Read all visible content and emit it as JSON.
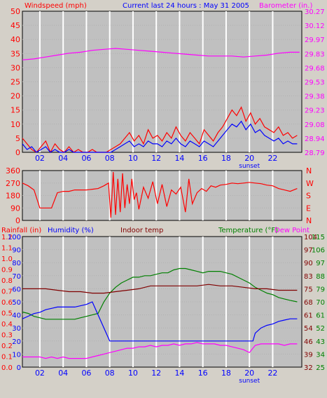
{
  "header": {
    "windspeed_label": "Windspeed (mph)",
    "title": "Current last 24 hours : May 31 2005",
    "barometer_label": "Barometer (in.)"
  },
  "colors": {
    "background": "#d4d0c8",
    "plot_bg": "#c0c0c0",
    "grid": "#ffffff",
    "red": "#ff0000",
    "blue": "#0000ff",
    "magenta": "#ff00ff",
    "green": "#008000",
    "maroon": "#800000",
    "label_red": "#ff0000",
    "label_magenta": "#ff00ff",
    "label_blue": "#0000ff",
    "label_green": "#008000",
    "label_maroon": "#800000"
  },
  "chart_data": [
    {
      "id": "wind-barometer",
      "type": "line",
      "x_ticks": [
        "02",
        "04",
        "06",
        "08",
        "10",
        "12",
        "14",
        "16",
        "18",
        "20",
        "22"
      ],
      "x_hours": [
        1.5,
        3.5,
        5.5,
        7.5,
        9.5,
        11.5,
        13.5,
        15.5,
        17.5,
        19.5,
        21.5
      ],
      "x_range": [
        0,
        24
      ],
      "sunset_label": "sunset",
      "sunset_hour": 19.5,
      "ylim_left": [
        0,
        50
      ],
      "ylim_right": [
        28.79,
        30.27
      ],
      "left_ticks": [
        "0",
        "5",
        "10",
        "15",
        "20",
        "25",
        "30",
        "35",
        "40",
        "45",
        "50"
      ],
      "right_ticks": [
        "28.79",
        "28.94",
        "29.08",
        "29.23",
        "29.38",
        "29.53",
        "29.68",
        "29.83",
        "29.97",
        "30.12",
        "30.27"
      ],
      "series": [
        {
          "name": "gust",
          "color": "red",
          "axis": "left",
          "x": [
            0,
            0.4,
            0.8,
            1.2,
            1.6,
            2,
            2.4,
            2.8,
            3.2,
            3.6,
            4,
            4.4,
            4.8,
            5.2,
            5.6,
            6,
            6.4,
            6.8,
            7.2,
            7.6,
            8,
            8.4,
            8.8,
            9.2,
            9.6,
            10,
            10.4,
            10.8,
            11.2,
            11.6,
            12,
            12.4,
            12.8,
            13.2,
            13.6,
            14,
            14.4,
            14.8,
            15.2,
            15.6,
            16,
            16.4,
            16.8,
            17.2,
            17.6,
            18,
            18.4,
            18.8,
            19.2,
            19.6,
            20,
            20.4,
            20.8,
            21.2,
            21.6,
            22,
            22.4,
            22.8,
            23.2,
            23.6
          ],
          "y": [
            5,
            3,
            1,
            0,
            2,
            4,
            0,
            3,
            1,
            0,
            2,
            0,
            1,
            0,
            0,
            1,
            0,
            0,
            0,
            1,
            2,
            3,
            5,
            7,
            4,
            6,
            3,
            8,
            5,
            6,
            4,
            7,
            5,
            9,
            6,
            4,
            7,
            5,
            3,
            8,
            6,
            4,
            7,
            9,
            12,
            15,
            13,
            16,
            11,
            14,
            10,
            12,
            9,
            8,
            7,
            9,
            6,
            7,
            5,
            6
          ]
        },
        {
          "name": "speed",
          "color": "blue",
          "axis": "left",
          "x": [
            0,
            0.4,
            0.8,
            1.2,
            1.6,
            2,
            2.4,
            2.8,
            3.2,
            3.6,
            4,
            4.4,
            4.8,
            5.2,
            5.6,
            6,
            6.4,
            6.8,
            7.2,
            7.6,
            8,
            8.4,
            8.8,
            9.2,
            9.6,
            10,
            10.4,
            10.8,
            11.2,
            11.6,
            12,
            12.4,
            12.8,
            13.2,
            13.6,
            14,
            14.4,
            14.8,
            15.2,
            15.6,
            16,
            16.4,
            16.8,
            17.2,
            17.6,
            18,
            18.4,
            18.8,
            19.2,
            19.6,
            20,
            20.4,
            20.8,
            21.2,
            21.6,
            22,
            22.4,
            22.8,
            23.2,
            23.6
          ],
          "y": [
            3,
            1,
            2,
            0,
            1,
            2,
            0,
            1,
            0,
            0,
            1,
            0,
            0,
            0,
            0,
            0,
            0,
            0,
            0,
            0,
            1,
            2,
            3,
            4,
            2,
            3,
            2,
            4,
            3,
            3,
            2,
            4,
            3,
            5,
            3,
            2,
            4,
            3,
            2,
            4,
            3,
            2,
            4,
            6,
            8,
            10,
            9,
            11,
            8,
            10,
            7,
            8,
            6,
            5,
            4,
            5,
            3,
            4,
            3,
            3
          ]
        },
        {
          "name": "barometer",
          "color": "magenta",
          "axis": "right",
          "x": [
            0,
            1,
            2,
            3,
            4,
            5,
            6,
            7,
            8,
            9,
            10,
            11,
            12,
            13,
            14,
            15,
            16,
            17,
            18,
            19,
            20,
            21,
            22,
            23,
            23.8
          ],
          "y": [
            29.76,
            29.77,
            29.79,
            29.81,
            29.83,
            29.84,
            29.86,
            29.87,
            29.88,
            29.87,
            29.86,
            29.85,
            29.84,
            29.83,
            29.82,
            29.81,
            29.8,
            29.8,
            29.8,
            29.79,
            29.8,
            29.81,
            29.83,
            29.84,
            29.84
          ]
        }
      ]
    },
    {
      "id": "wind-direction",
      "type": "line",
      "x_range": [
        0,
        24
      ],
      "ylim": [
        0,
        360
      ],
      "left_ticks": [
        "0",
        "90",
        "180",
        "270",
        "360"
      ],
      "right_ticks": [
        "N",
        "E",
        "S",
        "W",
        "N"
      ],
      "series": [
        {
          "name": "direction",
          "color": "red",
          "x": [
            0,
            0.5,
            1,
            1.5,
            2,
            2.5,
            3,
            3.5,
            4,
            4.5,
            5,
            5.5,
            6,
            6.5,
            7,
            7.2,
            7.4,
            7.6,
            7.8,
            8,
            8.2,
            8.4,
            8.6,
            8.8,
            9,
            9.2,
            9.4,
            9.6,
            9.8,
            10,
            10.4,
            10.8,
            11.2,
            11.6,
            12,
            12.4,
            12.8,
            13.2,
            13.6,
            14,
            14.3,
            14.6,
            15,
            15.4,
            15.8,
            16.2,
            16.6,
            17,
            17.5,
            18,
            18.5,
            19,
            19.5,
            20,
            20.5,
            21,
            21.5,
            22,
            22.5,
            23,
            23.6
          ],
          "y": [
            270,
            250,
            220,
            90,
            90,
            90,
            200,
            210,
            210,
            220,
            220,
            220,
            225,
            230,
            250,
            260,
            270,
            20,
            350,
            40,
            300,
            60,
            340,
            90,
            260,
            120,
            300,
            150,
            200,
            80,
            240,
            160,
            280,
            120,
            260,
            100,
            220,
            190,
            240,
            60,
            300,
            120,
            200,
            230,
            210,
            250,
            240,
            255,
            260,
            270,
            265,
            270,
            275,
            270,
            265,
            255,
            250,
            230,
            220,
            210,
            230
          ]
        }
      ]
    },
    {
      "id": "temp-humidity-rain",
      "type": "line",
      "x_ticks": [
        "02",
        "04",
        "06",
        "08",
        "10",
        "12",
        "14",
        "16",
        "18",
        "20",
        "22"
      ],
      "x_hours": [
        1.5,
        3.5,
        5.5,
        7.5,
        9.5,
        11.5,
        13.5,
        15.5,
        17.5,
        19.5,
        21.5
      ],
      "x_range": [
        0,
        24
      ],
      "sunset_label": "sunset",
      "sunset_hour": 19.5,
      "labels": {
        "rainfall": "Rainfall (in)",
        "humidity": "Humidity (%)",
        "indoor": "Indoor temp",
        "temperature": "Temperature (°F)",
        "dewpoint": "Dew Point"
      },
      "rain_ticks": [
        "0.0",
        "0.1",
        "0.2",
        "0.3",
        "0.4",
        "0.5",
        "0.6",
        "0.7",
        "0.8",
        "0.9",
        "1.0",
        "1.1",
        "1.2"
      ],
      "humidity_ticks": [
        "0",
        "10",
        "20",
        "30",
        "40",
        "50",
        "60",
        "70",
        "80",
        "90",
        "100"
      ],
      "indoor_ticks": [
        "32",
        "39",
        "46",
        "54",
        "61",
        "68",
        "75",
        "83",
        "90",
        "97",
        "104"
      ],
      "temp_ticks": [
        "25",
        "34",
        "43",
        "52",
        "61",
        "70",
        "79",
        "88",
        "97",
        "106",
        "115"
      ],
      "temp_range": [
        25,
        115
      ],
      "humidity_range": [
        0,
        100
      ],
      "series": [
        {
          "name": "temperature",
          "color": "green",
          "x": [
            0,
            0.5,
            1,
            1.5,
            2,
            2.5,
            3,
            3.5,
            4,
            4.5,
            5,
            5.5,
            6,
            6.5,
            7,
            7.5,
            8,
            8.5,
            9,
            9.5,
            10,
            10.5,
            11,
            11.5,
            12,
            12.5,
            13,
            13.5,
            14,
            14.5,
            15,
            15.5,
            16,
            16.5,
            17,
            17.5,
            18,
            18.5,
            19,
            19.5,
            20,
            20.5,
            21,
            21.5,
            22,
            22.5,
            23,
            23.6
          ],
          "y": [
            63,
            62,
            60,
            59,
            58,
            58,
            58,
            58,
            58,
            58,
            59,
            60,
            61,
            62,
            70,
            76,
            80,
            83,
            85,
            87,
            87,
            88,
            88,
            89,
            90,
            90,
            92,
            93,
            93,
            92,
            91,
            90,
            91,
            91,
            91,
            90,
            89,
            87,
            85,
            83,
            80,
            78,
            76,
            75,
            73,
            72,
            71,
            70
          ]
        },
        {
          "name": "humidity",
          "color": "blue",
          "x": [
            0,
            0.5,
            1,
            1.5,
            2,
            2.5,
            3,
            3.5,
            4,
            4.5,
            5,
            5.5,
            6,
            6.5,
            7,
            7.5,
            8,
            9,
            10,
            11,
            12,
            13,
            14,
            15,
            16,
            17,
            18,
            19,
            19.5,
            19.8,
            20,
            20.5,
            21,
            21.5,
            22,
            22.5,
            23,
            23.6
          ],
          "y": [
            37,
            39,
            41,
            42,
            44,
            45,
            46,
            46,
            46,
            46,
            47,
            48,
            50,
            40,
            30,
            20,
            20,
            20,
            20,
            20,
            20,
            20,
            20,
            20,
            20,
            20,
            20,
            20,
            20,
            20,
            26,
            30,
            32,
            33,
            35,
            36,
            37,
            37
          ]
        },
        {
          "name": "indoor",
          "color": "maroon",
          "x": [
            0,
            1,
            2,
            3,
            4,
            5,
            6,
            7,
            8,
            9,
            10,
            11,
            12,
            13,
            14,
            15,
            16,
            17,
            18,
            19,
            20,
            21,
            22,
            23,
            23.6
          ],
          "y": [
            79,
            79,
            79,
            78,
            77,
            77,
            76,
            76,
            77,
            78,
            79,
            81,
            81,
            81,
            81,
            81,
            82,
            81,
            81,
            80,
            79,
            79,
            78,
            78,
            78
          ]
        },
        {
          "name": "dewpoint",
          "color": "magenta",
          "x": [
            0,
            0.5,
            1,
            1.5,
            2,
            2.5,
            3,
            3.5,
            4,
            4.5,
            5,
            5.5,
            6,
            6.5,
            7,
            7.5,
            8,
            8.5,
            9,
            9.5,
            10,
            10.5,
            11,
            11.5,
            12,
            12.5,
            13,
            13.5,
            14,
            14.5,
            15,
            15.5,
            16,
            16.5,
            17,
            17.5,
            18,
            18.5,
            19,
            19.5,
            20,
            20.5,
            21,
            21.5,
            22,
            22.5,
            23,
            23.6
          ],
          "y": [
            32,
            32,
            32,
            32,
            31,
            32,
            31,
            32,
            31,
            31,
            31,
            31,
            32,
            33,
            34,
            35,
            36,
            37,
            38,
            38,
            39,
            39,
            40,
            39,
            40,
            40,
            41,
            40,
            41,
            41,
            42,
            41,
            41,
            41,
            40,
            40,
            39,
            38,
            37,
            35,
            40,
            41,
            41,
            41,
            41,
            40,
            41,
            41
          ]
        },
        {
          "name": "rainfall",
          "color": "red",
          "x": [
            0,
            24
          ],
          "y": [
            0,
            0
          ]
        }
      ]
    }
  ]
}
